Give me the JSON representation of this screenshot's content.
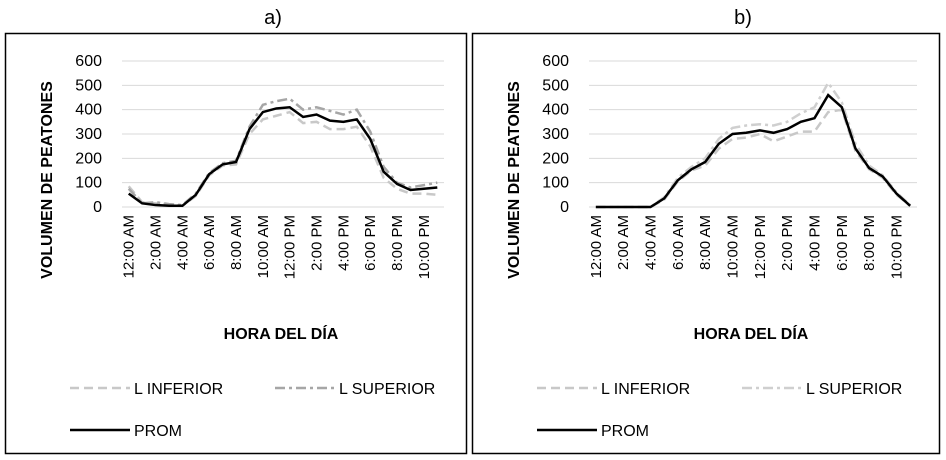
{
  "chart_data": [
    {
      "type": "line",
      "title": "a)",
      "x_label": "HORA DEL DÍA",
      "y_label": "VOLUMEN DE PEATONES",
      "categories": [
        "12:00 AM",
        null,
        "2:00 AM",
        null,
        "4:00 AM",
        null,
        "6:00 AM",
        null,
        "8:00 AM",
        null,
        "10:00 AM",
        null,
        "12:00 PM",
        null,
        "2:00 PM",
        null,
        "4:00 PM",
        null,
        "6:00 PM",
        null,
        "8:00 PM",
        null,
        "10:00 PM",
        null
      ],
      "series": [
        {
          "name": "L INFERIOR",
          "color": "#c8c8c8",
          "dash": "dash",
          "values": [
            85,
            20,
            15,
            10,
            5,
            45,
            130,
            170,
            175,
            300,
            360,
            375,
            390,
            345,
            350,
            320,
            320,
            330,
            250,
            120,
            75,
            55,
            55,
            50
          ]
        },
        {
          "name": "L SUPERIOR",
          "color": "#a6a6a6",
          "dash": "dashdot",
          "values": [
            75,
            15,
            20,
            12,
            8,
            55,
            140,
            180,
            190,
            330,
            420,
            435,
            445,
            400,
            410,
            395,
            380,
            400,
            310,
            165,
            100,
            80,
            90,
            100
          ]
        },
        {
          "name": "PROM",
          "color": "#000000",
          "dash": "solid",
          "values": [
            55,
            15,
            8,
            5,
            5,
            50,
            135,
            175,
            185,
            320,
            390,
            405,
            410,
            370,
            380,
            355,
            350,
            360,
            280,
            145,
            95,
            70,
            75,
            80
          ]
        }
      ],
      "ylim": [
        0,
        600
      ],
      "yticks": [
        0,
        100,
        200,
        300,
        400,
        500,
        600
      ],
      "grid": true
    },
    {
      "type": "line",
      "title": "b)",
      "x_label": "HORA DEL DÍA",
      "y_label": "VOLUMEN DE PEATONES",
      "categories": [
        "12:00 AM",
        null,
        "2:00 AM",
        null,
        "4:00 AM",
        null,
        "6:00 AM",
        null,
        "8:00 AM",
        null,
        "10:00 AM",
        null,
        "12:00 PM",
        null,
        "2:00 PM",
        null,
        "4:00 PM",
        null,
        "6:00 PM",
        null,
        "8:00 PM",
        null,
        "10:00 PM",
        null
      ],
      "series": [
        {
          "name": "L INFERIOR",
          "color": "#c8c8c8",
          "dash": "dash",
          "values": [
            0,
            0,
            0,
            0,
            0,
            30,
            105,
            150,
            170,
            240,
            280,
            285,
            300,
            270,
            290,
            310,
            310,
            390,
            400,
            230,
            155,
            120,
            50,
            5
          ]
        },
        {
          "name": "L SUPERIOR",
          "color": "#cfcfcf",
          "dash": "dashdot",
          "values": [
            0,
            0,
            0,
            0,
            0,
            40,
            120,
            165,
            200,
            280,
            325,
            335,
            340,
            335,
            350,
            385,
            410,
            510,
            430,
            260,
            170,
            130,
            60,
            8
          ]
        },
        {
          "name": "PROM",
          "color": "#000000",
          "dash": "solid",
          "values": [
            0,
            0,
            0,
            0,
            0,
            35,
            110,
            155,
            185,
            260,
            300,
            305,
            315,
            305,
            320,
            350,
            365,
            460,
            410,
            240,
            160,
            125,
            55,
            5
          ]
        }
      ],
      "ylim": [
        0,
        600
      ],
      "yticks": [
        0,
        100,
        200,
        300,
        400,
        500,
        600
      ],
      "grid": true
    }
  ]
}
